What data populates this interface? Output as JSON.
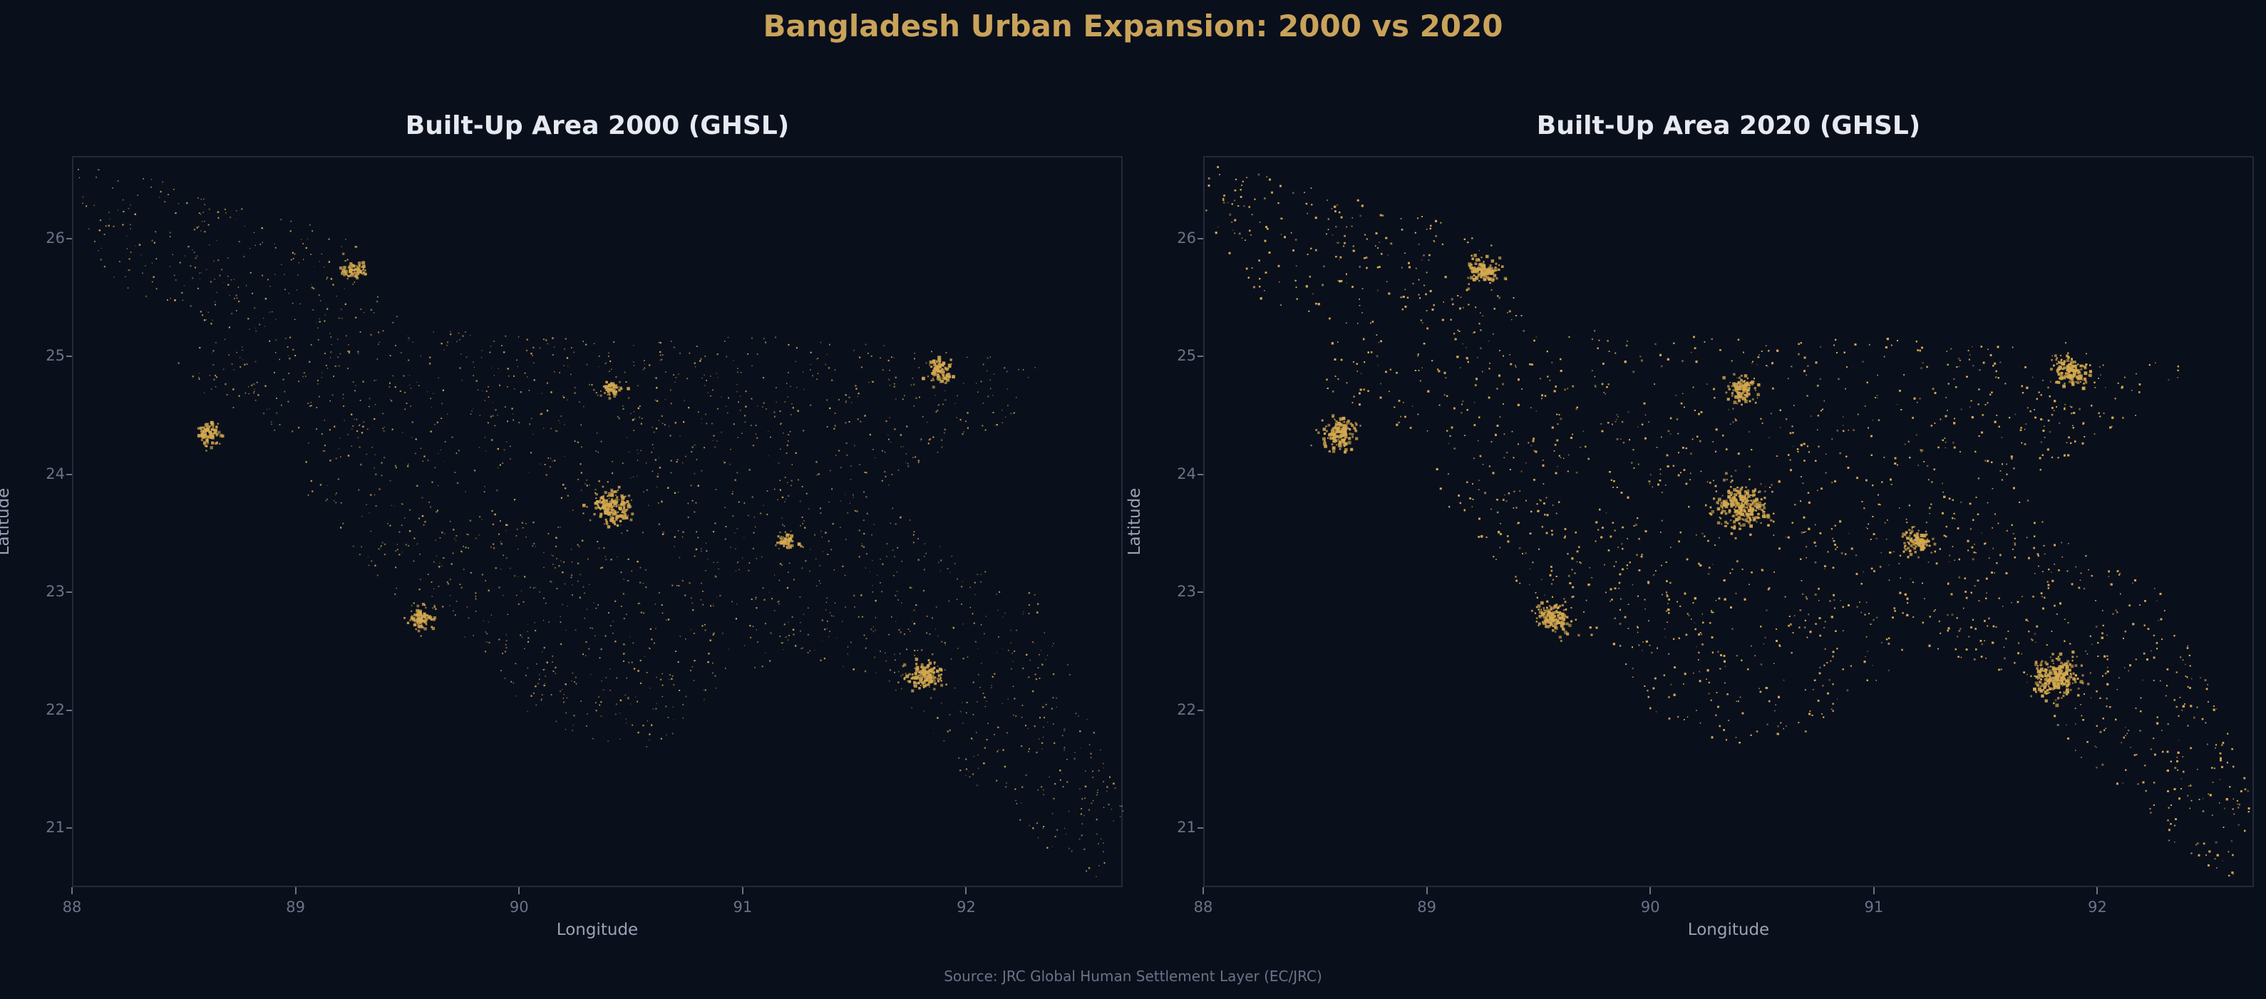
{
  "title": "Bangladesh Urban Expansion: 2000 vs 2020",
  "source": "Source: JRC Global Human Settlement Layer (EC/JRC)",
  "colors": {
    "background": "#0a0f1c",
    "built_up": "#d4a94f",
    "title": "#c9a35a",
    "panel_title": "#e6e9f0",
    "ticks": "#6b7386"
  },
  "chart_data": [
    {
      "type": "heatmap",
      "title": "Built-Up Area 2000 (GHSL)",
      "xlabel": "Longitude",
      "ylabel": "Latitude",
      "xlim": [
        88,
        92.7
      ],
      "ylim": [
        20.5,
        26.7
      ],
      "xticks": [
        "88",
        "89",
        "90",
        "91",
        "92"
      ],
      "yticks": [
        "21",
        "22",
        "23",
        "24",
        "25",
        "26"
      ],
      "grid": false,
      "built_up_density": "sparse",
      "hotspots": [
        {
          "lon": 90.4,
          "lat": 23.75,
          "intensity": 1.0
        },
        {
          "lon": 91.8,
          "lat": 22.3,
          "intensity": 0.8
        },
        {
          "lon": 88.6,
          "lat": 24.37,
          "intensity": 0.5
        },
        {
          "lon": 89.55,
          "lat": 22.8,
          "intensity": 0.5
        },
        {
          "lon": 91.87,
          "lat": 24.9,
          "intensity": 0.5
        },
        {
          "lon": 89.25,
          "lat": 25.75,
          "intensity": 0.4
        },
        {
          "lon": 91.18,
          "lat": 23.45,
          "intensity": 0.3
        },
        {
          "lon": 90.4,
          "lat": 24.75,
          "intensity": 0.3
        }
      ]
    },
    {
      "type": "heatmap",
      "title": "Built-Up Area 2020 (GHSL)",
      "xlabel": "Longitude",
      "ylabel": "Latitude",
      "xlim": [
        88,
        92.7
      ],
      "ylim": [
        20.5,
        26.7
      ],
      "xticks": [
        "88",
        "89",
        "90",
        "91",
        "92"
      ],
      "yticks": [
        "21",
        "22",
        "23",
        "24",
        "25",
        "26"
      ],
      "grid": false,
      "built_up_density": "dense",
      "hotspots": [
        {
          "lon": 90.4,
          "lat": 23.75,
          "intensity": 1.0
        },
        {
          "lon": 91.8,
          "lat": 22.3,
          "intensity": 0.9
        },
        {
          "lon": 88.6,
          "lat": 24.37,
          "intensity": 0.6
        },
        {
          "lon": 89.55,
          "lat": 22.8,
          "intensity": 0.6
        },
        {
          "lon": 91.87,
          "lat": 24.9,
          "intensity": 0.6
        },
        {
          "lon": 89.25,
          "lat": 25.75,
          "intensity": 0.5
        },
        {
          "lon": 91.18,
          "lat": 23.45,
          "intensity": 0.4
        },
        {
          "lon": 90.4,
          "lat": 24.75,
          "intensity": 0.4
        }
      ]
    }
  ]
}
